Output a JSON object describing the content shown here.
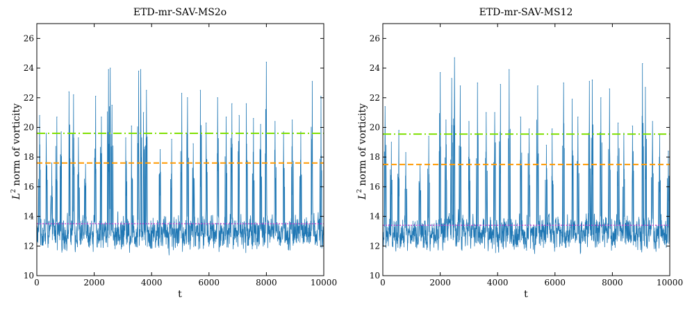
{
  "chart_data": [
    {
      "type": "line",
      "title": "ETD-mr-SAV-MS2o",
      "xlabel": "t",
      "ylabel_main": "L",
      "ylabel_sup": "2",
      "ylabel_rest": " norm of vorticity",
      "xlim": [
        0,
        10000
      ],
      "ylim": [
        10,
        27
      ],
      "xticks": [
        0,
        2000,
        4000,
        6000,
        8000,
        10000
      ],
      "yticks": [
        10,
        12,
        14,
        16,
        18,
        20,
        22,
        24,
        26
      ],
      "series": [
        {
          "name": "L2 norm of vorticity",
          "color": "#1f77b4",
          "baseline_mean": 12.9,
          "range": [
            11.0,
            14.6
          ],
          "spikes": [
            {
              "t": 100,
              "peak": 20.8
            },
            {
              "t": 330,
              "peak": 19.6
            },
            {
              "t": 520,
              "peak": 17.6
            },
            {
              "t": 700,
              "peak": 20.7
            },
            {
              "t": 850,
              "peak": 19.7
            },
            {
              "t": 1120,
              "peak": 22.4
            },
            {
              "t": 1280,
              "peak": 22.2
            },
            {
              "t": 1450,
              "peak": 19.3
            },
            {
              "t": 1700,
              "peak": 17.5
            },
            {
              "t": 2050,
              "peak": 22.1
            },
            {
              "t": 2250,
              "peak": 20.7
            },
            {
              "t": 2500,
              "peak": 23.9
            },
            {
              "t": 2560,
              "peak": 24.0
            },
            {
              "t": 2620,
              "peak": 21.5
            },
            {
              "t": 3100,
              "peak": 19.3
            },
            {
              "t": 3300,
              "peak": 20.1
            },
            {
              "t": 3550,
              "peak": 23.8
            },
            {
              "t": 3620,
              "peak": 23.9
            },
            {
              "t": 3720,
              "peak": 21.0
            },
            {
              "t": 3820,
              "peak": 22.5
            },
            {
              "t": 4300,
              "peak": 18.5
            },
            {
              "t": 4700,
              "peak": 19.2
            },
            {
              "t": 5050,
              "peak": 22.3
            },
            {
              "t": 5250,
              "peak": 22.0
            },
            {
              "t": 5450,
              "peak": 18.9
            },
            {
              "t": 5700,
              "peak": 22.5
            },
            {
              "t": 5900,
              "peak": 20.3
            },
            {
              "t": 6300,
              "peak": 22.0
            },
            {
              "t": 6600,
              "peak": 20.7
            },
            {
              "t": 6800,
              "peak": 21.6
            },
            {
              "t": 7050,
              "peak": 20.8
            },
            {
              "t": 7300,
              "peak": 21.6
            },
            {
              "t": 7550,
              "peak": 20.6
            },
            {
              "t": 7800,
              "peak": 20.2
            },
            {
              "t": 8000,
              "peak": 24.4
            },
            {
              "t": 8300,
              "peak": 20.4
            },
            {
              "t": 8600,
              "peak": 19.7
            },
            {
              "t": 8900,
              "peak": 20.5
            },
            {
              "t": 9200,
              "peak": 19.7
            },
            {
              "t": 9600,
              "peak": 23.1
            },
            {
              "t": 9900,
              "peak": 22.1
            }
          ]
        }
      ],
      "hlines": [
        {
          "name": "green dash-dot",
          "y": 19.6,
          "color": "#7fe000",
          "style": "dashdot"
        },
        {
          "name": "orange dashed",
          "y": 17.6,
          "color": "#ff9900",
          "style": "dashed"
        },
        {
          "name": "magenta dotted",
          "y": 13.5,
          "color": "#cc33cc",
          "style": "dotted"
        }
      ]
    },
    {
      "type": "line",
      "title": "ETD-mr-SAV-MS12",
      "xlabel": "t",
      "ylabel_main": "L",
      "ylabel_sup": "2",
      "ylabel_rest": " norm of vorticity",
      "xlim": [
        0,
        10000
      ],
      "ylim": [
        10,
        27
      ],
      "xticks": [
        0,
        2000,
        4000,
        6000,
        8000,
        10000
      ],
      "yticks": [
        10,
        12,
        14,
        16,
        18,
        20,
        22,
        24,
        26
      ],
      "series": [
        {
          "name": "L2 norm of vorticity",
          "color": "#1f77b4",
          "baseline_mean": 12.9,
          "range": [
            11.0,
            14.7
          ],
          "spikes": [
            {
              "t": 80,
              "peak": 21.4
            },
            {
              "t": 300,
              "peak": 19.0
            },
            {
              "t": 560,
              "peak": 19.8
            },
            {
              "t": 800,
              "peak": 18.3
            },
            {
              "t": 1300,
              "peak": 17.5
            },
            {
              "t": 1600,
              "peak": 19.4
            },
            {
              "t": 2000,
              "peak": 23.7
            },
            {
              "t": 2200,
              "peak": 20.5
            },
            {
              "t": 2400,
              "peak": 23.3
            },
            {
              "t": 2500,
              "peak": 24.7
            },
            {
              "t": 2700,
              "peak": 22.8
            },
            {
              "t": 3000,
              "peak": 20.4
            },
            {
              "t": 3300,
              "peak": 23.0
            },
            {
              "t": 3600,
              "peak": 21.0
            },
            {
              "t": 3900,
              "peak": 21.0
            },
            {
              "t": 4100,
              "peak": 22.9
            },
            {
              "t": 4400,
              "peak": 23.9
            },
            {
              "t": 4800,
              "peak": 20.7
            },
            {
              "t": 5100,
              "peak": 19.9
            },
            {
              "t": 5400,
              "peak": 22.8
            },
            {
              "t": 5700,
              "peak": 18.8
            },
            {
              "t": 5900,
              "peak": 19.9
            },
            {
              "t": 6300,
              "peak": 23.0
            },
            {
              "t": 6600,
              "peak": 21.9
            },
            {
              "t": 6800,
              "peak": 20.7
            },
            {
              "t": 7200,
              "peak": 23.1
            },
            {
              "t": 7300,
              "peak": 23.2
            },
            {
              "t": 7600,
              "peak": 22.0
            },
            {
              "t": 7900,
              "peak": 22.6
            },
            {
              "t": 8200,
              "peak": 20.3
            },
            {
              "t": 8400,
              "peak": 19.6
            },
            {
              "t": 8700,
              "peak": 20.1
            },
            {
              "t": 9050,
              "peak": 24.3
            },
            {
              "t": 9150,
              "peak": 22.7
            },
            {
              "t": 9400,
              "peak": 20.4
            },
            {
              "t": 9650,
              "peak": 19.5
            },
            {
              "t": 9950,
              "peak": 18.4
            }
          ]
        }
      ],
      "hlines": [
        {
          "name": "green dash-dot",
          "y": 19.55,
          "color": "#7fe000",
          "style": "dashdot"
        },
        {
          "name": "orange dashed",
          "y": 17.5,
          "color": "#ff9900",
          "style": "dashed"
        },
        {
          "name": "magenta dotted",
          "y": 13.4,
          "color": "#cc33cc",
          "style": "dotted"
        }
      ]
    }
  ]
}
